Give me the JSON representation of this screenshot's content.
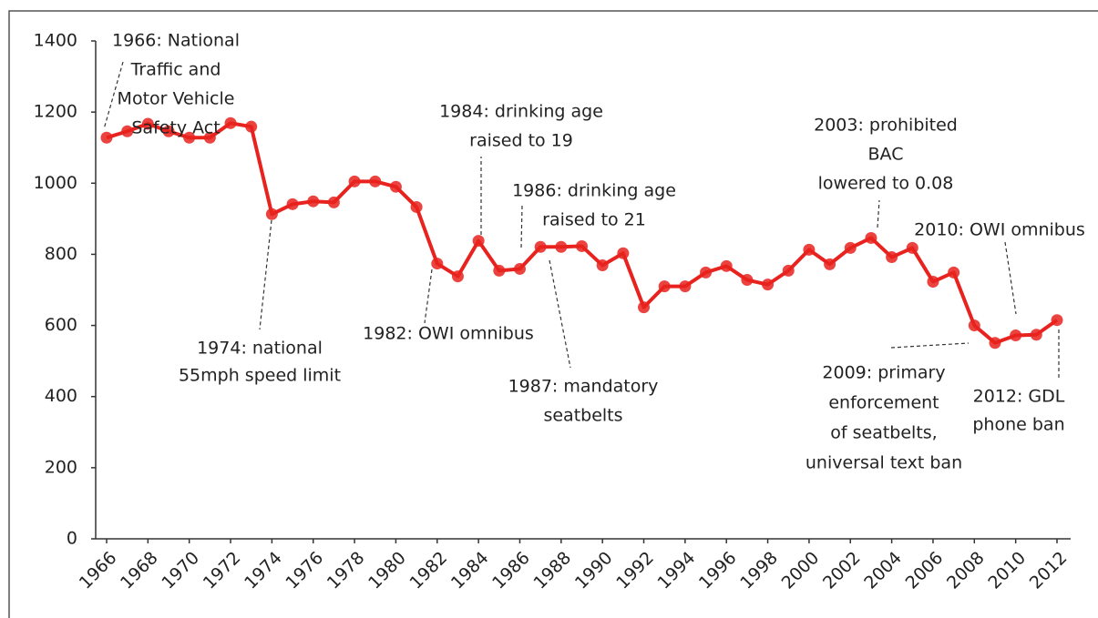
{
  "chart_data": {
    "type": "line",
    "x": [
      1966,
      1967,
      1968,
      1969,
      1970,
      1971,
      1972,
      1973,
      1974,
      1975,
      1976,
      1977,
      1978,
      1979,
      1980,
      1981,
      1982,
      1983,
      1984,
      1985,
      1986,
      1987,
      1988,
      1989,
      1990,
      1991,
      1992,
      1993,
      1994,
      1995,
      1996,
      1997,
      1998,
      1999,
      2000,
      2001,
      2002,
      2003,
      2004,
      2005,
      2006,
      2007,
      2008,
      2009,
      2010,
      2011,
      2012
    ],
    "series": [
      {
        "color": "#e8231f",
        "values": [
          1128,
          1146,
          1167,
          1146,
          1128,
          1128,
          1169,
          1159,
          913,
          941,
          949,
          946,
          1005,
          1005,
          990,
          933,
          774,
          738,
          838,
          754,
          759,
          821,
          821,
          823,
          769,
          803,
          651,
          710,
          710,
          749,
          767,
          728,
          715,
          754,
          813,
          772,
          818,
          846,
          792,
          818,
          723,
          749,
          600,
          551,
          572,
          574,
          615
        ]
      }
    ],
    "xlim": [
      1966,
      2012
    ],
    "xticks": [
      1966,
      1968,
      1970,
      1972,
      1974,
      1976,
      1978,
      1980,
      1982,
      1984,
      1986,
      1988,
      1990,
      1992,
      1994,
      1996,
      1998,
      2000,
      2002,
      2004,
      2006,
      2008,
      2010,
      2012
    ],
    "ylim": [
      0,
      1400
    ],
    "yticks": [
      0,
      200,
      400,
      600,
      800,
      1000,
      1200,
      1400
    ],
    "grid": false,
    "annotations": [
      [
        "1966: National",
        "Traffic and",
        "Motor Vehicle",
        "Safety Act"
      ],
      [
        "1974: national",
        "55mph speed limit"
      ],
      [
        "1982: OWI omnibus"
      ],
      [
        "1984: drinking age",
        "raised to 19"
      ],
      [
        "1986: drinking age",
        "raised to 21"
      ],
      [
        "1987: mandatory",
        "seatbelts"
      ],
      [
        "2003: prohibited",
        "BAC",
        "lowered to 0.08"
      ],
      [
        "2010: OWI omnibus"
      ],
      [
        "2009: primary",
        "enforcement",
        "of seatbelts,",
        "universal text ban"
      ],
      [
        "2012: GDL",
        "phone ban"
      ]
    ]
  }
}
